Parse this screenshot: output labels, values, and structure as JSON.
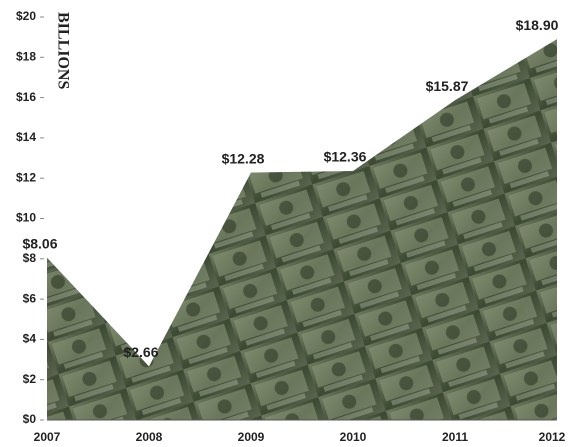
{
  "chart_data": {
    "type": "area",
    "y_label": "BILLIONS",
    "categories": [
      "2007",
      "2008",
      "2009",
      "2010",
      "2011",
      "2012"
    ],
    "values": [
      8.06,
      2.66,
      12.28,
      12.36,
      15.87,
      18.9
    ],
    "value_labels": [
      "$8.06",
      "$2.66",
      "$12.28",
      "$12.36",
      "$15.87",
      "$18.90"
    ],
    "color": "#4e5c42",
    "ylim": [
      0,
      20
    ],
    "yticks": [
      {
        "value": 0,
        "label": "$0"
      },
      {
        "value": 2,
        "label": "$2"
      },
      {
        "value": 4,
        "label": "$4"
      },
      {
        "value": 6,
        "label": "$6"
      },
      {
        "value": 8,
        "label": "$8"
      },
      {
        "value": 10,
        "label": "$10"
      },
      {
        "value": 12,
        "label": "$12"
      },
      {
        "value": 14,
        "label": "$14"
      },
      {
        "value": 16,
        "label": "$16"
      },
      {
        "value": 18,
        "label": "$18"
      },
      {
        "value": 20,
        "label": "$20"
      }
    ]
  }
}
